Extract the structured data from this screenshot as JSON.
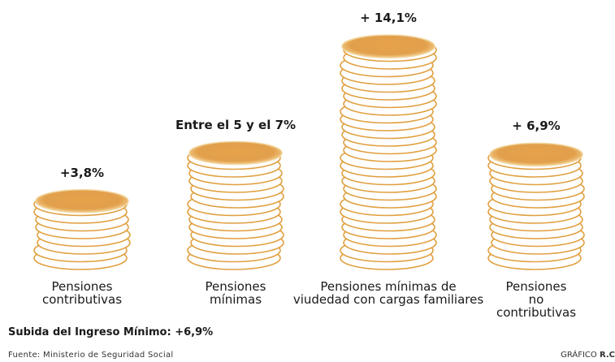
{
  "chart_data": {
    "type": "coin-stack",
    "categories": [
      "Pensiones\ncontributivas",
      "Pensiones\nmínimas",
      "Pensiones mínimas de\nviudedad con cargas familiares",
      "Pensiones no\ncontributivas"
    ],
    "values": [
      3.8,
      5,
      14.1,
      6.9
    ],
    "values_high": [
      null,
      7,
      null,
      null
    ],
    "value_labels": [
      "+3,8%",
      "Entre el 5 y el 7%",
      "+ 14,1%",
      "+ 6,9%"
    ],
    "color": "#e0a040",
    "note": "Subida del Ingreso Mínimo: +6,9%",
    "source": "Fuente: Ministerio de Seguridad Social",
    "credit": {
      "label": "GRÁFICO",
      "author": "R.C"
    }
  }
}
